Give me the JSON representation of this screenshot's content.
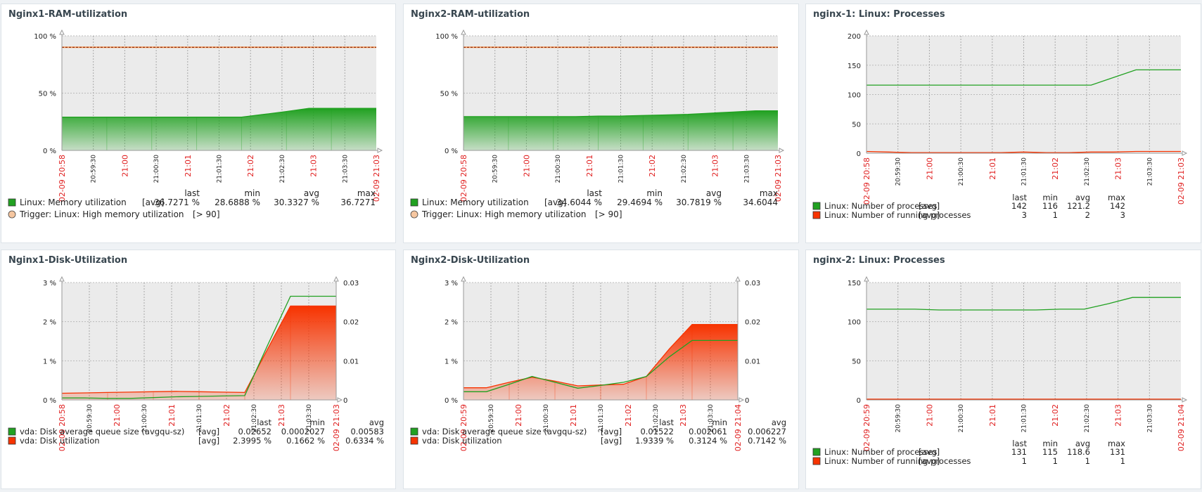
{
  "colors": {
    "green": "#21a121",
    "green_line": "#1b8d1b",
    "red": "#f73300",
    "red_line": "#e23000",
    "trigger": "#8b2000",
    "tick_red": "#e02020",
    "tick_dark": "#222222",
    "plot_bg": "#ebebeb"
  },
  "widgets": [
    {
      "title": "Nginx1-RAM-utilization",
      "x_ticks": [
        "20:59:30",
        "21:00:30",
        "21:01:30",
        "21:02:30",
        "21:03:30"
      ],
      "x_ticks_red": [
        "02-09 20:58",
        "21:00",
        "21:01",
        "21:02",
        "21:03",
        "02-09 21:03"
      ],
      "legend_headers": [
        "last",
        "min",
        "avg",
        "max"
      ],
      "legend": [
        {
          "name": "Linux: Memory utilization",
          "func": "[avg]",
          "last": "36.7271 %",
          "min": "28.6888 %",
          "avg": "30.3327 %",
          "max": "36.7271"
        },
        {
          "name": "Trigger: Linux: High memory utilization",
          "func": "[> 90]"
        }
      ],
      "chart_data": {
        "type": "area",
        "yaxis_left": {
          "ticks": [
            "100 %",
            "50 %",
            "0 %"
          ],
          "range": [
            0,
            100
          ]
        },
        "series": [
          {
            "name": "Linux: Memory utilization",
            "color": "#21a121",
            "values": [
              29,
              29,
              29,
              29,
              29,
              29,
              29,
              29,
              29,
              31.5,
              34,
              36.7,
              36.7,
              36.7,
              36.7
            ]
          }
        ],
        "threshold": 90
      }
    },
    {
      "title": "Nginx2-RAM-utilization",
      "x_ticks": [
        "20:59:30",
        "21:00:30",
        "21:01:30",
        "21:02:30",
        "21:03:30"
      ],
      "x_ticks_red": [
        "02-09 20:58",
        "21:00",
        "21:01",
        "21:02",
        "21:03",
        "02-09 21:03"
      ],
      "legend_headers": [
        "last",
        "min",
        "avg",
        "max"
      ],
      "legend": [
        {
          "name": "Linux: Memory utilization",
          "func": "[avg]",
          "last": "34.6044 %",
          "min": "29.4694 %",
          "avg": "30.7819 %",
          "max": "34.6044"
        },
        {
          "name": "Trigger: Linux: High memory utilization",
          "func": "[> 90]"
        }
      ],
      "chart_data": {
        "type": "area",
        "yaxis_left": {
          "ticks": [
            "100 %",
            "50 %",
            "0 %"
          ],
          "range": [
            0,
            100
          ]
        },
        "series": [
          {
            "name": "Linux: Memory utilization",
            "color": "#21a121",
            "values": [
              29.5,
              29.5,
              29.5,
              29.5,
              29.5,
              29.5,
              30,
              30,
              30.5,
              31,
              31.5,
              32.5,
              33.5,
              34.6,
              34.6
            ]
          }
        ],
        "threshold": 90
      }
    },
    {
      "title": "nginx-1: Linux: Processes",
      "x_ticks": [
        "20:59:30",
        "21:00:30",
        "21:01:30",
        "21:02:30",
        "21:03:30"
      ],
      "x_ticks_red": [
        "02-09 20:58",
        "21:00",
        "21:01",
        "21:02",
        "21:03",
        "02-09 21:03"
      ],
      "legend_headers": [
        "last",
        "min",
        "avg",
        "max"
      ],
      "legend": [
        {
          "name": "Linux: Number of processes",
          "func": "[avg]",
          "last": "142",
          "min": "116",
          "avg": "121.2",
          "max": "142"
        },
        {
          "name": "Linux: Number of running processes",
          "func": "[avg]",
          "last": "3",
          "min": "1",
          "avg": "2",
          "max": "3"
        }
      ],
      "chart_data": {
        "type": "line",
        "yaxis_left": {
          "ticks": [
            "200",
            "150",
            "100",
            "50",
            "0"
          ],
          "range": [
            0,
            200
          ]
        },
        "series": [
          {
            "name": "Linux: Number of processes",
            "color": "#21a121",
            "values": [
              116,
              116,
              116,
              116,
              116,
              116,
              116,
              116,
              116,
              116,
              116,
              129,
              142,
              142,
              142
            ]
          },
          {
            "name": "Linux: Number of running processes",
            "color": "#f73300",
            "values": [
              3,
              2,
              1,
              1,
              1,
              1,
              1,
              2,
              1,
              1,
              2,
              2,
              3,
              3,
              3
            ]
          }
        ]
      }
    },
    {
      "title": "Nginx1-Disk-Utilization",
      "x_ticks": [
        "20:59:30",
        "21:00:30",
        "21:01:30",
        "21:02:30",
        "21:03:30"
      ],
      "x_ticks_red": [
        "02-09 20:58",
        "21:00",
        "21:01",
        "21:02",
        "21:03",
        "02-09 21:03"
      ],
      "legend_headers": [
        "last",
        "min",
        "avg"
      ],
      "legend": [
        {
          "name": "vda: Disk average queue size (avgqu-sz)",
          "func": "[avg]",
          "last": "0.02652",
          "min": "0.0002027",
          "avg": "0.00583"
        },
        {
          "name": "vda: Disk utilization",
          "func": "[avg]",
          "last": "2.3995 %",
          "min": "0.1662 %",
          "avg": "0.6334 %"
        }
      ],
      "chart_data": {
        "type": "area",
        "yaxis_left": {
          "ticks": [
            "3 %",
            "2 %",
            "1 %",
            "0 %"
          ],
          "range": [
            0,
            3
          ]
        },
        "yaxis_right": {
          "ticks": [
            "0.03",
            "0.02",
            "0.01",
            "0"
          ],
          "range": [
            0,
            0.03
          ]
        },
        "series": [
          {
            "name": "vda: Disk utilization",
            "color": "#f73300",
            "values": [
              0.17,
              0.18,
              0.19,
              0.2,
              0.21,
              0.22,
              0.21,
              0.2,
              0.19,
              1.3,
              2.4,
              2.4,
              2.4
            ]
          },
          {
            "name": "vda: Disk average queue size (avgqu-sz)",
            "color": "#21a121",
            "axis": "right",
            "values": [
              0.0005,
              0.0005,
              0.0004,
              0.0004,
              0.0006,
              0.0008,
              0.0009,
              0.001,
              0.0011,
              0.014,
              0.0265,
              0.0265,
              0.0265
            ]
          }
        ]
      }
    },
    {
      "title": "Nginx2-Disk-Utilization",
      "x_ticks": [
        "20:59:30",
        "21:00:30",
        "21:01:30",
        "21:02:30",
        "21:03:30"
      ],
      "x_ticks_red": [
        "02-09 20:59",
        "21:00",
        "21:01",
        "21:02",
        "21:03",
        "02-09 21:04"
      ],
      "legend_headers": [
        "last",
        "min",
        "avg"
      ],
      "legend": [
        {
          "name": "vda: Disk average queue size (avgqu-sz)",
          "func": "[avg]",
          "last": "0.01522",
          "min": "0.002061",
          "avg": "0.006227"
        },
        {
          "name": "vda: Disk utilization",
          "func": "[avg]",
          "last": "1.9339 %",
          "min": "0.3124 %",
          "avg": "0.7142 %"
        }
      ],
      "chart_data": {
        "type": "area",
        "yaxis_left": {
          "ticks": [
            "3 %",
            "2 %",
            "1 %",
            "0 %"
          ],
          "range": [
            0,
            3
          ]
        },
        "yaxis_right": {
          "ticks": [
            "0.03",
            "0.02",
            "0.01",
            "0"
          ],
          "range": [
            0,
            0.03
          ]
        },
        "series": [
          {
            "name": "vda: Disk utilization",
            "color": "#f73300",
            "values": [
              0.31,
              0.31,
              0.45,
              0.58,
              0.48,
              0.36,
              0.38,
              0.4,
              0.6,
              1.3,
              1.93,
              1.93,
              1.93
            ]
          },
          {
            "name": "vda: Disk average queue size (avgqu-sz)",
            "color": "#21a121",
            "axis": "right",
            "values": [
              0.0021,
              0.0021,
              0.004,
              0.006,
              0.0045,
              0.003,
              0.0037,
              0.0045,
              0.006,
              0.011,
              0.0152,
              0.0152,
              0.0152
            ]
          }
        ]
      }
    },
    {
      "title": "nginx-2: Linux: Processes",
      "x_ticks": [
        "20:59:30",
        "21:00:30",
        "21:01:30",
        "21:02:30",
        "21:03:30"
      ],
      "x_ticks_red": [
        "02-09 20:59",
        "21:00",
        "21:01",
        "21:02",
        "21:03",
        "02-09 21:04"
      ],
      "legend_headers": [
        "last",
        "min",
        "avg",
        "max"
      ],
      "legend": [
        {
          "name": "Linux: Number of processes",
          "func": "[avg]",
          "last": "131",
          "min": "115",
          "avg": "118.6",
          "max": "131"
        },
        {
          "name": "Linux: Number of running processes",
          "func": "[avg]",
          "last": "1",
          "min": "1",
          "avg": "1",
          "max": "1"
        }
      ],
      "chart_data": {
        "type": "line",
        "yaxis_left": {
          "ticks": [
            "150",
            "100",
            "50",
            "0"
          ],
          "range": [
            0,
            150
          ]
        },
        "series": [
          {
            "name": "Linux: Number of processes",
            "color": "#21a121",
            "values": [
              116,
              116,
              116,
              115,
              115,
              115,
              115,
              115,
              116,
              116,
              123,
              131,
              131,
              131
            ]
          },
          {
            "name": "Linux: Number of running processes",
            "color": "#f73300",
            "values": [
              1,
              1,
              1,
              1,
              1,
              1,
              1,
              1,
              1,
              1,
              1,
              1,
              1,
              1
            ]
          }
        ]
      }
    }
  ]
}
